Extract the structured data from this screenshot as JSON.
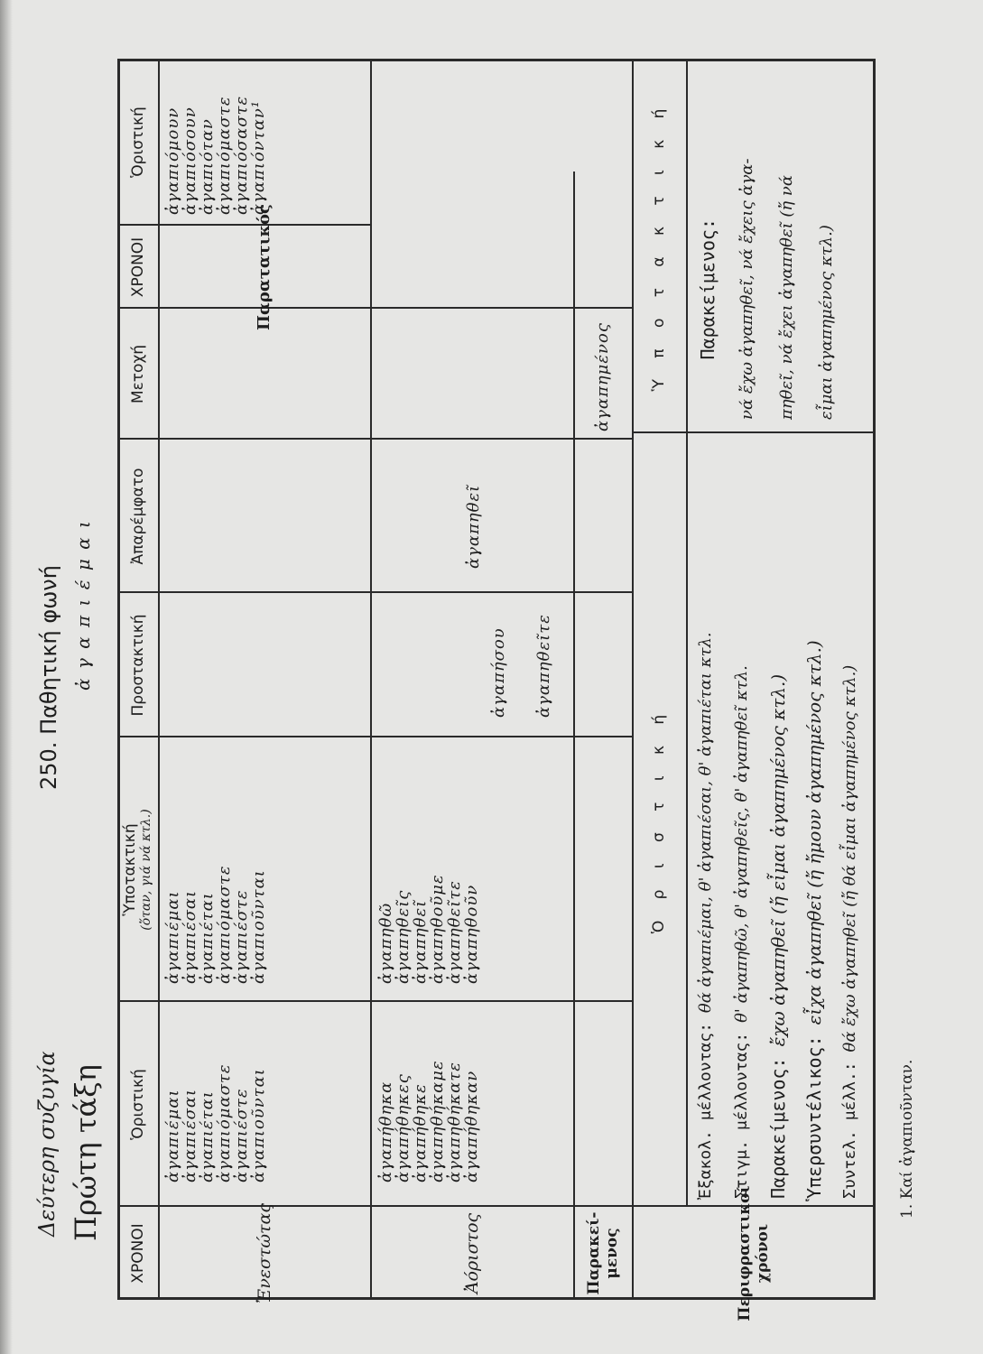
{
  "heading": {
    "conjugation": "Δεύτερη συζυγία",
    "class": "Πρώτη τάξη",
    "section": "250.  Παθητική φωνή",
    "verb": "ἀ γ α π ι έ μ α ι"
  },
  "table": {
    "headers_left": {
      "tenses": "ΧΡΟΝΟΙ",
      "indicative": "Ὁριστική",
      "subjunctive": "Ὑποτακτική",
      "subjunctive_note": "(ὅταν, γιά νά κτλ.)",
      "imperative": "Προστακτική",
      "infinitive": "Ἀπαρέμφατο",
      "participle": "Μετοχή"
    },
    "headers_right": {
      "tenses": "ΧΡΟΝΟΙ",
      "indicative": "Ὁριστική"
    },
    "present": {
      "label": "Ἐνεστώτας",
      "indicative": [
        "ἀγαπιέμαι",
        "ἀγαπιέσαι",
        "ἀγαπιέται",
        "ἀγαπιόμαστε",
        "ἀγαπιέστε",
        "ἀγαπιοῦνται"
      ],
      "subjunctive": [
        "ἀγαπιέμαι",
        "ἀγαπιέσαι",
        "ἀγαπιέται",
        "ἀγαπιόμαστε",
        "ἀγαπιέστε",
        "ἀγαπιοῦνται"
      ]
    },
    "imperfect": {
      "label": "Παρατατικός",
      "indicative": [
        "ἀγαπιόμουν",
        "ἀγαπιόσουν",
        "ἀγαπιόταν",
        "ἀγαπιόμαστε",
        "ἀγαπιόσαστε",
        "ἀγαπιόνταν¹"
      ]
    },
    "aorist": {
      "label": "Ἀόριστος",
      "indicative": [
        "ἀγαπήθηκα",
        "ἀγαπήθηκες",
        "ἀγαπήθηκε",
        "ἀγαπηθήκαμε",
        "ἀγαπηθήκατε",
        "ἀγαπήθηκαν"
      ],
      "subjunctive": [
        "ἀγαπηθῶ",
        "ἀγαπηθεῖς",
        "ἀγαπηθεῖ",
        "ἀγαπηθοῦμε",
        "ἀγαπηθεῖτε",
        "ἀγαπηθοῦν"
      ],
      "imperative": [
        "ἀγαπήσου",
        "ἀγαπηθεῖτε"
      ],
      "infinitive": "ἀγαπηθεῖ"
    },
    "perfect": {
      "label": "Παρακεί-μενος",
      "participle": "ἀγαπημένος"
    },
    "periphrastic": {
      "label": "Περιφραστικοί χρόνοι",
      "indicative_title": "Ὁ ρ ι σ τ ι κ ή",
      "subjunctive_title": "Ὑ π ο τ α κ τ ι κ ή",
      "indicative": [
        {
          "name": "Ἐξακολ. μέλλοντας:",
          "forms": "θά ἀγαπιέμαι, θ' ἀγαπιέσαι, θ' ἀγαπιέται κτλ."
        },
        {
          "name": "Στιγμ. μέλλοντας:",
          "forms": "θ' ἀγαπηθῶ, θ' ἀγαπηθεῖς, θ' ἀγαπηθεῖ κτλ."
        },
        {
          "name": "Παρακείμενος:",
          "forms": "ἔχω ἀγαπηθεῖ (ἤ εἶμαι ἀγαπημένος κτλ.)"
        },
        {
          "name": "Ὑπερσυντέλικος:",
          "forms": "εἶχα ἀγαπηθεῖ (ἤ ἤμουν ἀγαπημένος κτλ.)"
        },
        {
          "name": "Συντελ. μέλλ.:",
          "forms": "θά ἔχω ἀγαπηθεῖ (ἤ θά εἶμαι ἀγαπημένος κτλ.)"
        }
      ],
      "subjunctive_name": "Παρακείμενος:",
      "subjunctive": [
        "νά ἔχω ἀγαπηθεῖ, νά ἔχεις ἀγα-",
        "πηθεῖ, νά ἔχει ἀγαπηθεῖ (ἤ νά",
        "εἶμαι ἀγαπημένος κτλ.)"
      ]
    }
  },
  "footnote": "1. Καί ἀγαπιοῦνταν."
}
